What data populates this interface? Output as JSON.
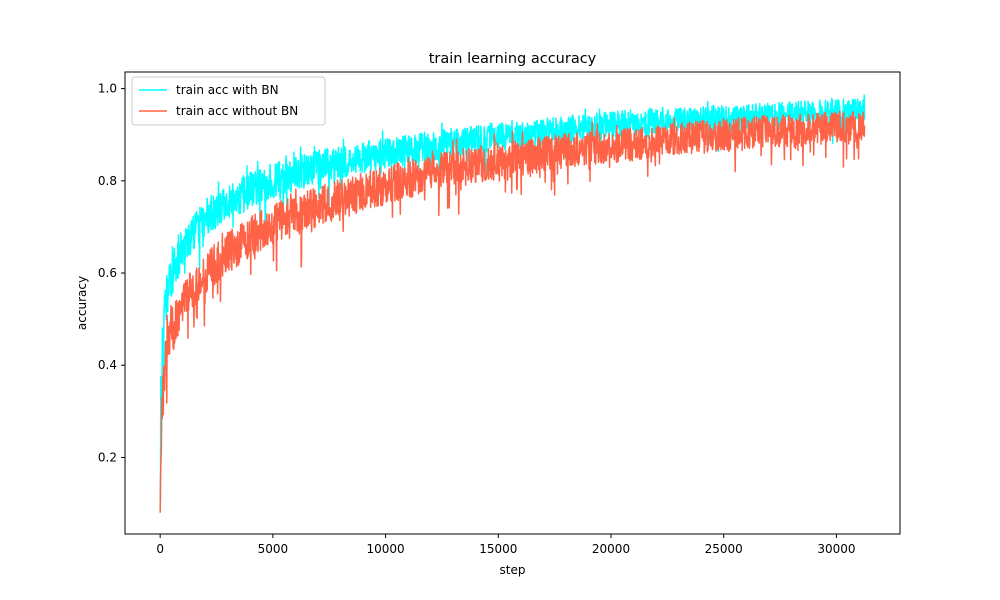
{
  "chart_data": {
    "type": "line",
    "title": "train learning accuracy",
    "xlabel": "step",
    "ylabel": "accuracy",
    "xlim": [
      -1560,
      32820
    ],
    "ylim": [
      0.034,
      1.036
    ],
    "xticks": [
      0,
      5000,
      10000,
      15000,
      20000,
      25000,
      30000
    ],
    "yticks": [
      0.2,
      0.4,
      0.6,
      0.8,
      1.0
    ],
    "grid": false,
    "legend_position": "top-left",
    "series": [
      {
        "name": "train acc with BN",
        "color": "#00ffff",
        "x": [
          0,
          100,
          200,
          300,
          500,
          800,
          1000,
          1500,
          2000,
          3000,
          4000,
          5000,
          6000,
          7000,
          8000,
          9000,
          10000,
          12000,
          14000,
          16000,
          18000,
          20000,
          22000,
          24000,
          26000,
          28000,
          30000,
          31250
        ],
        "y": [
          0.27,
          0.42,
          0.5,
          0.55,
          0.59,
          0.63,
          0.65,
          0.69,
          0.72,
          0.755,
          0.78,
          0.8,
          0.815,
          0.83,
          0.84,
          0.85,
          0.86,
          0.875,
          0.89,
          0.9,
          0.91,
          0.92,
          0.93,
          0.935,
          0.94,
          0.945,
          0.95,
          0.955
        ],
        "noise_amplitude": [
          0.08,
          0.07,
          0.06,
          0.055,
          0.05,
          0.045,
          0.045,
          0.04,
          0.04,
          0.04,
          0.04,
          0.038,
          0.037,
          0.036,
          0.035,
          0.034,
          0.034,
          0.033,
          0.032,
          0.031,
          0.03,
          0.03,
          0.029,
          0.028,
          0.027,
          0.027,
          0.026,
          0.026
        ]
      },
      {
        "name": "train acc without BN",
        "color": "#ff6347",
        "x": [
          0,
          100,
          200,
          300,
          500,
          800,
          1000,
          1500,
          2000,
          3000,
          4000,
          5000,
          6000,
          7000,
          8000,
          9000,
          10000,
          12000,
          14000,
          16000,
          18000,
          20000,
          22000,
          24000,
          26000,
          28000,
          30000,
          31250
        ],
        "y": [
          0.16,
          0.3,
          0.39,
          0.43,
          0.47,
          0.51,
          0.53,
          0.57,
          0.6,
          0.645,
          0.68,
          0.705,
          0.725,
          0.745,
          0.76,
          0.775,
          0.79,
          0.815,
          0.835,
          0.85,
          0.865,
          0.875,
          0.885,
          0.895,
          0.905,
          0.91,
          0.915,
          0.92
        ],
        "noise_amplitude": [
          0.08,
          0.07,
          0.06,
          0.055,
          0.05,
          0.048,
          0.046,
          0.045,
          0.045,
          0.045,
          0.045,
          0.045,
          0.044,
          0.044,
          0.043,
          0.043,
          0.042,
          0.041,
          0.04,
          0.039,
          0.038,
          0.037,
          0.036,
          0.036,
          0.035,
          0.035,
          0.034,
          0.034
        ]
      }
    ]
  }
}
